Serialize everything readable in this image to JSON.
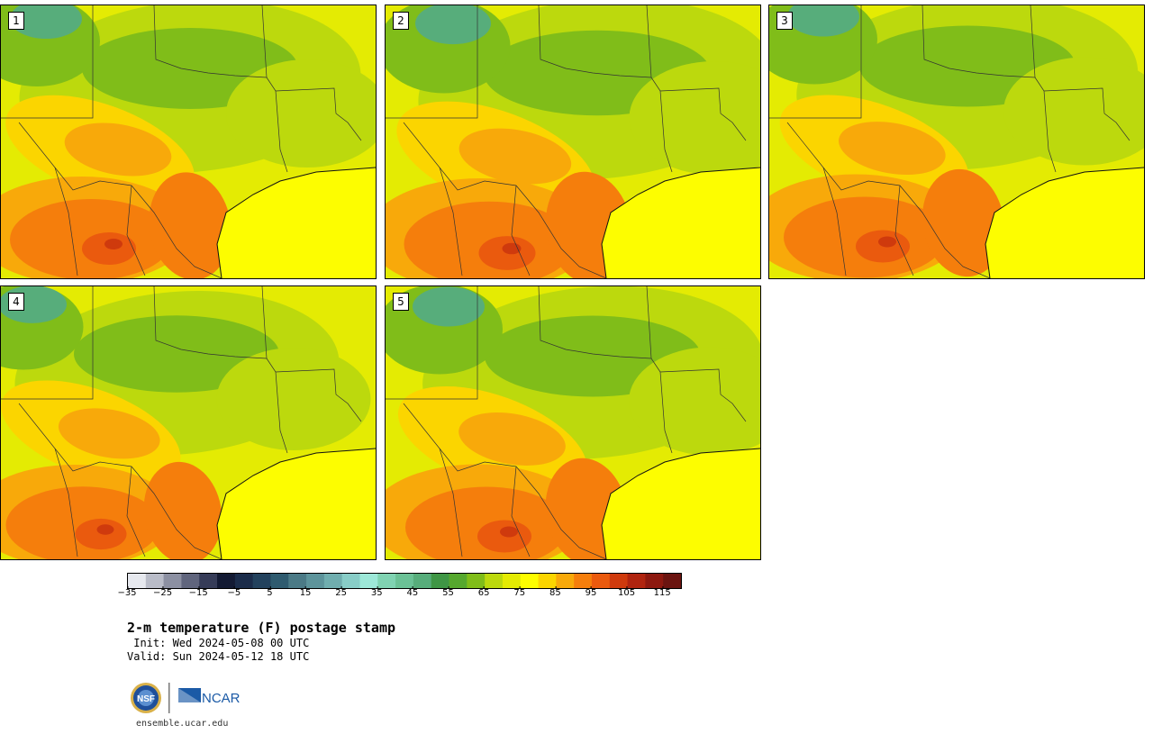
{
  "panels": [
    {
      "label": "1",
      "variant": 0
    },
    {
      "label": "2",
      "variant": 1
    },
    {
      "label": "3",
      "variant": 2
    },
    {
      "label": "4",
      "variant": 3
    },
    {
      "label": "5",
      "variant": 4
    }
  ],
  "colorbar": {
    "colors": [
      "#e6e8ee",
      "#b9bcc8",
      "#8c90a2",
      "#60657d",
      "#363c58",
      "#131a33",
      "#1b2c4a",
      "#23425d",
      "#2f5b6f",
      "#4b7a86",
      "#5d949b",
      "#70aeaf",
      "#88cdc7",
      "#9de8d8",
      "#80d3b2",
      "#6bc196",
      "#57ad7b",
      "#3f9645",
      "#56a82e",
      "#80bd19",
      "#bcd90d",
      "#e4eb03",
      "#fdfd00",
      "#fbd500",
      "#f8a90a",
      "#f57e0c",
      "#ea5a0e",
      "#cf3a0d",
      "#b0240f",
      "#8d180f",
      "#6b1410"
    ],
    "tick_labels": [
      "−35",
      "−25",
      "−15",
      "−5",
      "5",
      "15",
      "25",
      "35",
      "45",
      "55",
      "65",
      "75",
      "85",
      "95",
      "105",
      "115"
    ]
  },
  "title": "2-m temperature (F) postage stamp",
  "init": " Init: Wed 2024-05-08 00 UTC",
  "valid": "Valid: Sun 2024-05-12 18 UTC",
  "logos": {
    "left": "NSF",
    "right": "NCAR",
    "left_icon": "nsf-logo",
    "right_icon": "ncar-logo"
  },
  "site": "ensemble.ucar.edu"
}
